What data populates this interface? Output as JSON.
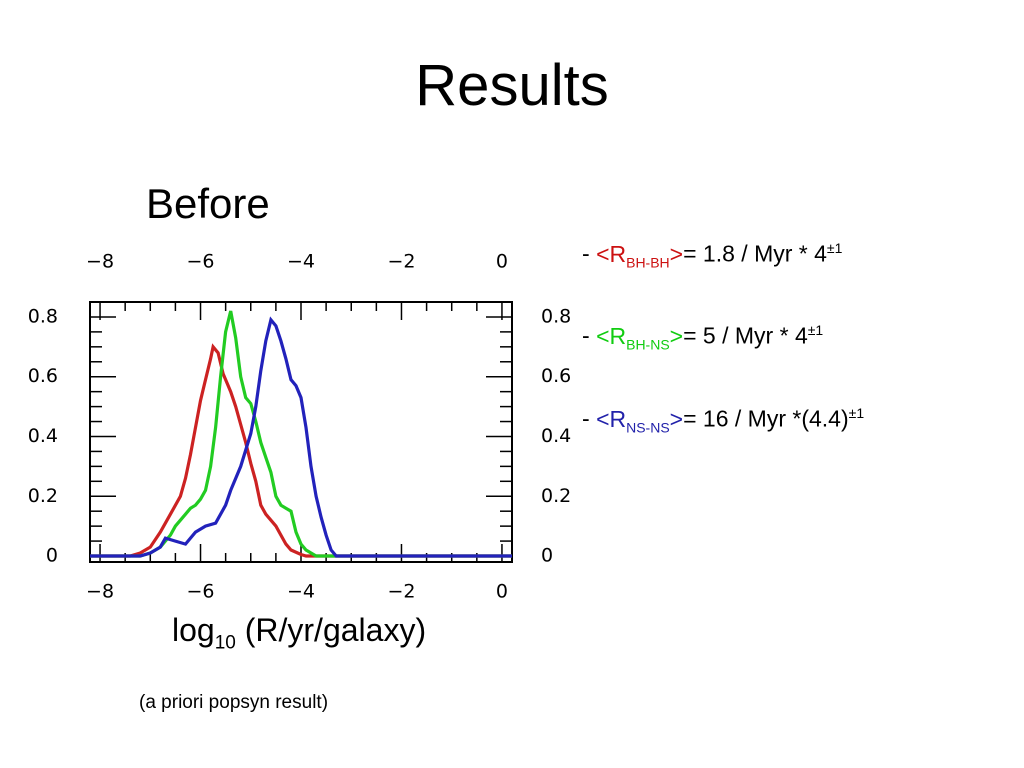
{
  "slide": {
    "title": "Results",
    "subtitle": "Before",
    "note": "(a priori popsyn result)"
  },
  "chart_data": {
    "type": "line",
    "title": "",
    "xlabel_main": "log",
    "xlabel_sub": "10",
    "xlabel_rest": " (R/yr/galaxy)",
    "xlim": [
      -8.2,
      0.2
    ],
    "ylim": [
      -0.02,
      0.85
    ],
    "x_ticks": [
      -8,
      -6,
      -4,
      -2,
      0
    ],
    "x_tick_labels": [
      "−8",
      "−6",
      "−4",
      "−2",
      "0"
    ],
    "y_ticks": [
      0,
      0.2,
      0.4,
      0.6,
      0.8
    ],
    "y_tick_labels": [
      "0",
      "0.2",
      "0.4",
      "0.6",
      "0.8"
    ],
    "grid": false,
    "series": [
      {
        "color": "#cc2222",
        "points": [
          [
            -8.2,
            0
          ],
          [
            -7.4,
            0
          ],
          [
            -7.2,
            0.01
          ],
          [
            -7.0,
            0.03
          ],
          [
            -6.8,
            0.08
          ],
          [
            -6.6,
            0.14
          ],
          [
            -6.4,
            0.2
          ],
          [
            -6.3,
            0.26
          ],
          [
            -6.2,
            0.34
          ],
          [
            -6.1,
            0.43
          ],
          [
            -6.0,
            0.52
          ],
          [
            -5.9,
            0.59
          ],
          [
            -5.8,
            0.66
          ],
          [
            -5.75,
            0.7
          ],
          [
            -5.65,
            0.68
          ],
          [
            -5.55,
            0.61
          ],
          [
            -5.4,
            0.55
          ],
          [
            -5.3,
            0.5
          ],
          [
            -5.2,
            0.44
          ],
          [
            -5.1,
            0.38
          ],
          [
            -5.0,
            0.31
          ],
          [
            -4.9,
            0.25
          ],
          [
            -4.8,
            0.17
          ],
          [
            -4.7,
            0.14
          ],
          [
            -4.6,
            0.12
          ],
          [
            -4.5,
            0.1
          ],
          [
            -4.4,
            0.07
          ],
          [
            -4.3,
            0.04
          ],
          [
            -4.2,
            0.02
          ],
          [
            -4.0,
            0.005
          ],
          [
            -3.9,
            0
          ],
          [
            0.2,
            0
          ]
        ]
      },
      {
        "color": "#22cc22",
        "points": [
          [
            -8.2,
            0
          ],
          [
            -7.2,
            0
          ],
          [
            -7.0,
            0.01
          ],
          [
            -6.8,
            0.03
          ],
          [
            -6.6,
            0.07
          ],
          [
            -6.5,
            0.1
          ],
          [
            -6.4,
            0.12
          ],
          [
            -6.3,
            0.14
          ],
          [
            -6.2,
            0.16
          ],
          [
            -6.1,
            0.17
          ],
          [
            -6.0,
            0.19
          ],
          [
            -5.9,
            0.22
          ],
          [
            -5.8,
            0.3
          ],
          [
            -5.7,
            0.43
          ],
          [
            -5.6,
            0.6
          ],
          [
            -5.5,
            0.75
          ],
          [
            -5.4,
            0.82
          ],
          [
            -5.3,
            0.73
          ],
          [
            -5.2,
            0.6
          ],
          [
            -5.1,
            0.53
          ],
          [
            -5.0,
            0.51
          ],
          [
            -4.9,
            0.45
          ],
          [
            -4.8,
            0.38
          ],
          [
            -4.7,
            0.33
          ],
          [
            -4.6,
            0.28
          ],
          [
            -4.5,
            0.2
          ],
          [
            -4.4,
            0.17
          ],
          [
            -4.3,
            0.16
          ],
          [
            -4.2,
            0.15
          ],
          [
            -4.1,
            0.08
          ],
          [
            -4.0,
            0.04
          ],
          [
            -3.9,
            0.02
          ],
          [
            -3.7,
            0
          ],
          [
            0.2,
            0
          ]
        ]
      },
      {
        "color": "#2222bb",
        "points": [
          [
            -8.2,
            0
          ],
          [
            -7.2,
            0
          ],
          [
            -7.0,
            0.01
          ],
          [
            -6.8,
            0.03
          ],
          [
            -6.7,
            0.06
          ],
          [
            -6.5,
            0.05
          ],
          [
            -6.3,
            0.04
          ],
          [
            -6.1,
            0.08
          ],
          [
            -5.9,
            0.1
          ],
          [
            -5.7,
            0.11
          ],
          [
            -5.5,
            0.17
          ],
          [
            -5.4,
            0.22
          ],
          [
            -5.2,
            0.3
          ],
          [
            -5.0,
            0.41
          ],
          [
            -4.9,
            0.5
          ],
          [
            -4.8,
            0.62
          ],
          [
            -4.7,
            0.72
          ],
          [
            -4.6,
            0.79
          ],
          [
            -4.5,
            0.77
          ],
          [
            -4.4,
            0.72
          ],
          [
            -4.3,
            0.66
          ],
          [
            -4.2,
            0.59
          ],
          [
            -4.1,
            0.57
          ],
          [
            -4.0,
            0.53
          ],
          [
            -3.9,
            0.43
          ],
          [
            -3.8,
            0.3
          ],
          [
            -3.7,
            0.2
          ],
          [
            -3.6,
            0.13
          ],
          [
            -3.5,
            0.07
          ],
          [
            -3.4,
            0.02
          ],
          [
            -3.3,
            0
          ],
          [
            0.2,
            0
          ]
        ]
      }
    ]
  },
  "rates": [
    {
      "dash": "- ",
      "open": "<R",
      "sub": "BH-BH",
      "close": ">",
      "value": "= 1.8 / Myr * 4",
      "sup": "±1",
      "color": "#cc1111"
    },
    {
      "dash": "- ",
      "open": "<R",
      "sub": "BH-NS",
      "close": ">",
      "value": "= 5 / Myr      * 4",
      "sup": "±1",
      "color": "#11cc11"
    },
    {
      "dash": "- ",
      "open": "<R",
      "sub": "NS-NS",
      "close": ">",
      "value": "= 16 / Myr   *(4.4)",
      "sup": "±1",
      "color": "#2222aa"
    }
  ]
}
